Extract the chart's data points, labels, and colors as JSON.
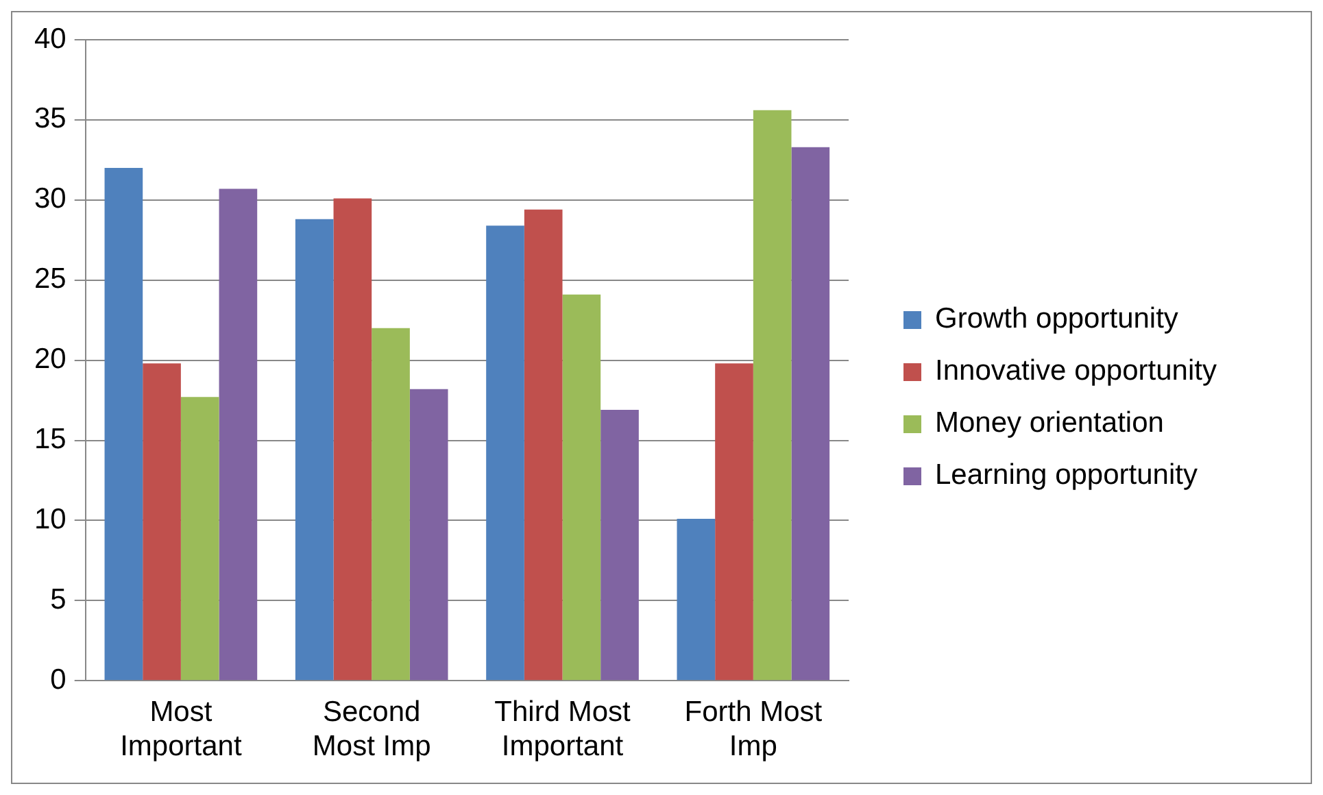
{
  "chart_data": {
    "type": "bar",
    "categories": [
      "Most Important",
      "Second Most Imp",
      "Third Most Important",
      "Forth Most Imp"
    ],
    "series": [
      {
        "name": "Growth opportunity",
        "color": "#4f81bd",
        "values": [
          32,
          28.8,
          28.4,
          10.1
        ]
      },
      {
        "name": "Innovative opportunity",
        "color": "#c0504d",
        "values": [
          19.8,
          30.1,
          29.4,
          19.8
        ]
      },
      {
        "name": "Money orientation",
        "color": "#9bbb59",
        "values": [
          17.7,
          22,
          24.1,
          35.6
        ]
      },
      {
        "name": "Learning opportunity",
        "color": "#8064a2",
        "values": [
          30.7,
          18.2,
          16.9,
          33.3
        ]
      }
    ],
    "ylim": [
      0,
      40
    ],
    "yticks": [
      0,
      5,
      10,
      15,
      20,
      25,
      30,
      35,
      40
    ],
    "grid": "y",
    "legend": "right"
  }
}
